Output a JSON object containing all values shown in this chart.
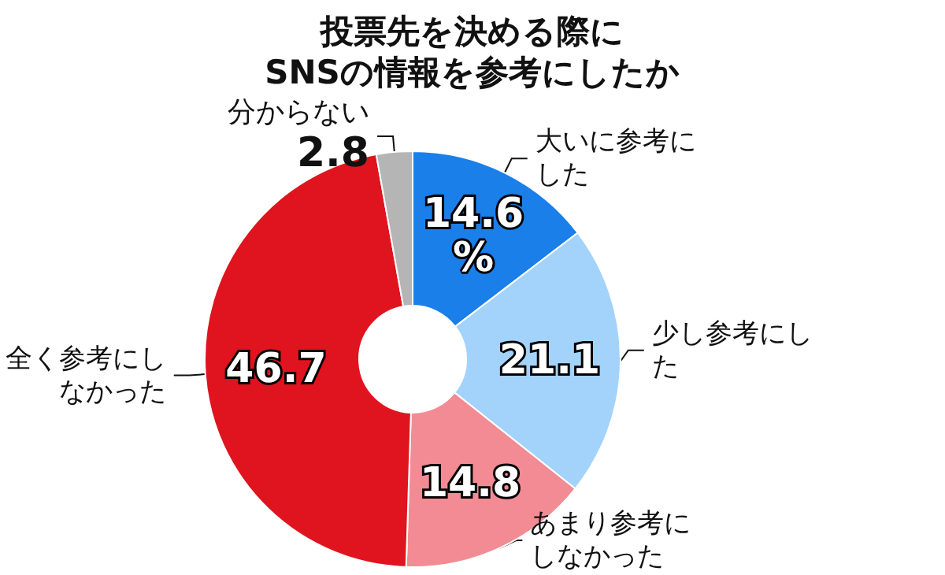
{
  "chart_data": {
    "type": "donut",
    "title": "投票先を決める際に\nSNSの情報を参考にしたか",
    "categories": [
      "大いに参考にした",
      "少し参考にした",
      "あまり参考にしなかった",
      "全く参考にしなかった",
      "分からない"
    ],
    "values": [
      14.6,
      21.1,
      14.8,
      46.7,
      2.8
    ],
    "colors": [
      "#1a7fe8",
      "#a3d3fa",
      "#f28b94",
      "#e0141e",
      "#b5b5b5"
    ],
    "value_labels": [
      "14.6\n%",
      "21.1",
      "14.8",
      "46.7",
      "2.8"
    ]
  }
}
